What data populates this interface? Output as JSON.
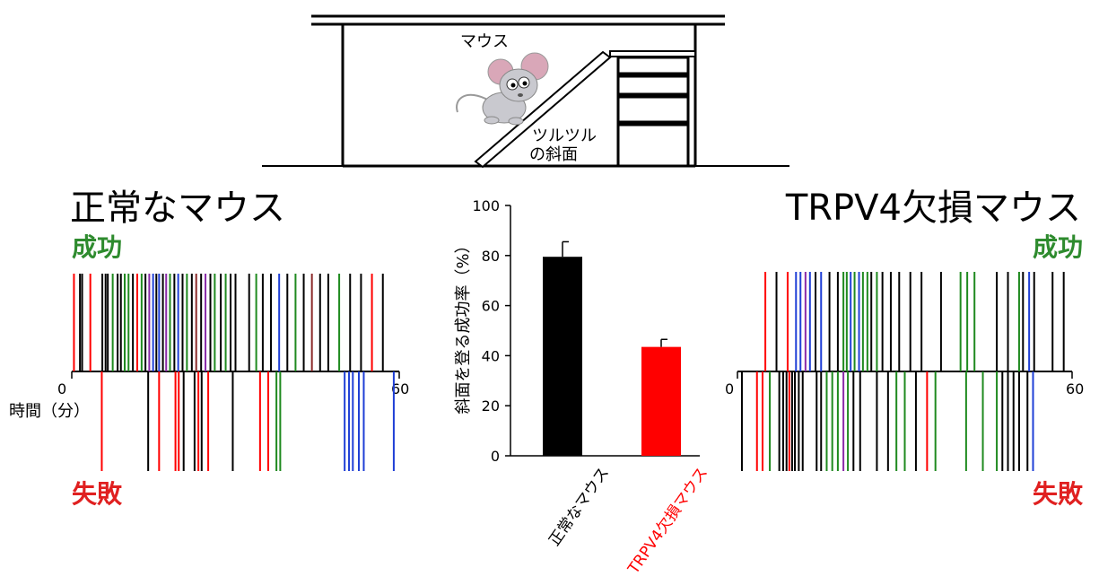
{
  "colors": {
    "success": "#2e8b2e",
    "failure": "#e02020",
    "black": "#000000",
    "red": "#ff0000",
    "blue": "#1f3fd6",
    "green": "#1f8a1f",
    "purple": "#8a2aa8",
    "darkred": "#8b2a2a"
  },
  "apparatus": {
    "mouse_label": "マウス",
    "slope_label_line1": "ツルツル",
    "slope_label_line2": "の斜面"
  },
  "left_panel": {
    "title": "正常なマウス",
    "success_label": "成功",
    "failure_label": "失敗",
    "time_label": "時間（分）",
    "x_start": "0",
    "x_end": "60"
  },
  "right_panel": {
    "title": "TRPV4欠損マウス",
    "success_label": "成功",
    "failure_label": "失敗",
    "x_start": "0",
    "x_end": "60"
  },
  "chart_data": [
    {
      "type": "bar",
      "categories": [
        "正常なマウス",
        "TRPV4欠損マウス"
      ],
      "values": [
        79.5,
        43.5
      ],
      "errors": [
        6,
        3
      ],
      "bar_colors": [
        "#000000",
        "#ff0000"
      ],
      "ylabel": "斜面を登る成功率（%）",
      "ylim": [
        0,
        100
      ],
      "yticks": [
        0,
        20,
        40,
        60,
        80,
        100
      ]
    },
    {
      "type": "event-raster",
      "xlim": [
        0,
        60
      ],
      "success_events": [
        {
          "t": 0.4,
          "c": "red"
        },
        {
          "t": 1.5,
          "c": "black"
        },
        {
          "t": 1.9,
          "c": "black"
        },
        {
          "t": 3.4,
          "c": "red"
        },
        {
          "t": 5.6,
          "c": "black"
        },
        {
          "t": 6.2,
          "c": "black"
        },
        {
          "t": 6.6,
          "c": "black"
        },
        {
          "t": 7.5,
          "c": "green"
        },
        {
          "t": 8.4,
          "c": "black"
        },
        {
          "t": 9.0,
          "c": "black"
        },
        {
          "t": 9.7,
          "c": "green"
        },
        {
          "t": 10.4,
          "c": "green"
        },
        {
          "t": 11.2,
          "c": "black"
        },
        {
          "t": 12.0,
          "c": "red"
        },
        {
          "t": 12.8,
          "c": "green"
        },
        {
          "t": 13.5,
          "c": "black"
        },
        {
          "t": 14.2,
          "c": "purple"
        },
        {
          "t": 14.9,
          "c": "blue"
        },
        {
          "t": 15.5,
          "c": "black"
        },
        {
          "t": 16.0,
          "c": "blue"
        },
        {
          "t": 16.7,
          "c": "black"
        },
        {
          "t": 17.3,
          "c": "purple"
        },
        {
          "t": 18.0,
          "c": "green"
        },
        {
          "t": 18.8,
          "c": "black"
        },
        {
          "t": 19.5,
          "c": "blue"
        },
        {
          "t": 20.3,
          "c": "black"
        },
        {
          "t": 21.1,
          "c": "green"
        },
        {
          "t": 22.0,
          "c": "black"
        },
        {
          "t": 22.8,
          "c": "darkred"
        },
        {
          "t": 23.7,
          "c": "black"
        },
        {
          "t": 24.5,
          "c": "purple"
        },
        {
          "t": 25.4,
          "c": "black"
        },
        {
          "t": 26.2,
          "c": "green"
        },
        {
          "t": 27.3,
          "c": "black"
        },
        {
          "t": 28.2,
          "c": "green"
        },
        {
          "t": 29.1,
          "c": "black"
        },
        {
          "t": 30.0,
          "c": "black"
        },
        {
          "t": 32.5,
          "c": "black"
        },
        {
          "t": 33.8,
          "c": "green"
        },
        {
          "t": 35.0,
          "c": "black"
        },
        {
          "t": 36.5,
          "c": "black"
        },
        {
          "t": 38.0,
          "c": "blue"
        },
        {
          "t": 39.5,
          "c": "black"
        },
        {
          "t": 41.0,
          "c": "green"
        },
        {
          "t": 42.5,
          "c": "black"
        },
        {
          "t": 44.0,
          "c": "darkred"
        },
        {
          "t": 45.5,
          "c": "black"
        },
        {
          "t": 47.0,
          "c": "black"
        },
        {
          "t": 49.0,
          "c": "green"
        },
        {
          "t": 51.0,
          "c": "black"
        },
        {
          "t": 53.0,
          "c": "black"
        },
        {
          "t": 55.0,
          "c": "red"
        },
        {
          "t": 57.0,
          "c": "black"
        }
      ],
      "failure_events": [
        {
          "t": 5.5,
          "c": "red"
        },
        {
          "t": 14.0,
          "c": "black"
        },
        {
          "t": 16.0,
          "c": "red"
        },
        {
          "t": 19.0,
          "c": "red"
        },
        {
          "t": 19.6,
          "c": "red"
        },
        {
          "t": 20.5,
          "c": "black"
        },
        {
          "t": 22.5,
          "c": "black"
        },
        {
          "t": 23.2,
          "c": "red"
        },
        {
          "t": 23.8,
          "c": "black"
        },
        {
          "t": 25.0,
          "c": "red"
        },
        {
          "t": 29.5,
          "c": "black"
        },
        {
          "t": 34.5,
          "c": "red"
        },
        {
          "t": 36.0,
          "c": "red"
        },
        {
          "t": 37.5,
          "c": "green"
        },
        {
          "t": 38.2,
          "c": "green"
        },
        {
          "t": 50.0,
          "c": "blue"
        },
        {
          "t": 50.8,
          "c": "blue"
        },
        {
          "t": 51.5,
          "c": "blue"
        },
        {
          "t": 52.6,
          "c": "blue"
        },
        {
          "t": 53.5,
          "c": "blue"
        },
        {
          "t": 59.0,
          "c": "blue"
        }
      ]
    },
    {
      "type": "event-raster",
      "xlim": [
        0,
        60
      ],
      "success_events": [
        {
          "t": 5.0,
          "c": "red"
        },
        {
          "t": 7.0,
          "c": "black"
        },
        {
          "t": 9.0,
          "c": "red"
        },
        {
          "t": 10.5,
          "c": "blue"
        },
        {
          "t": 11.3,
          "c": "blue"
        },
        {
          "t": 12.2,
          "c": "purple"
        },
        {
          "t": 13.0,
          "c": "blue"
        },
        {
          "t": 14.0,
          "c": "black"
        },
        {
          "t": 15.0,
          "c": "blue"
        },
        {
          "t": 16.5,
          "c": "black"
        },
        {
          "t": 18.0,
          "c": "black"
        },
        {
          "t": 19.0,
          "c": "green"
        },
        {
          "t": 19.6,
          "c": "green"
        },
        {
          "t": 20.3,
          "c": "blue"
        },
        {
          "t": 21.0,
          "c": "green"
        },
        {
          "t": 21.8,
          "c": "blue"
        },
        {
          "t": 22.5,
          "c": "green"
        },
        {
          "t": 23.3,
          "c": "green"
        },
        {
          "t": 24.0,
          "c": "black"
        },
        {
          "t": 25.0,
          "c": "green"
        },
        {
          "t": 26.0,
          "c": "black"
        },
        {
          "t": 27.5,
          "c": "black"
        },
        {
          "t": 29.0,
          "c": "black"
        },
        {
          "t": 31.0,
          "c": "black"
        },
        {
          "t": 33.0,
          "c": "black"
        },
        {
          "t": 36.5,
          "c": "black"
        },
        {
          "t": 40.0,
          "c": "green"
        },
        {
          "t": 41.2,
          "c": "green"
        },
        {
          "t": 42.5,
          "c": "green"
        },
        {
          "t": 46.5,
          "c": "black"
        },
        {
          "t": 48.5,
          "c": "black"
        },
        {
          "t": 50.5,
          "c": "green"
        },
        {
          "t": 51.2,
          "c": "black"
        },
        {
          "t": 52.3,
          "c": "blue"
        },
        {
          "t": 53.2,
          "c": "black"
        },
        {
          "t": 56.5,
          "c": "black"
        },
        {
          "t": 58.5,
          "c": "black"
        }
      ],
      "failure_events": [
        {
          "t": 0.8,
          "c": "black"
        },
        {
          "t": 3.5,
          "c": "red"
        },
        {
          "t": 4.5,
          "c": "red"
        },
        {
          "t": 5.8,
          "c": "green"
        },
        {
          "t": 7.5,
          "c": "black"
        },
        {
          "t": 8.2,
          "c": "black"
        },
        {
          "t": 8.8,
          "c": "black"
        },
        {
          "t": 9.3,
          "c": "red"
        },
        {
          "t": 9.8,
          "c": "black"
        },
        {
          "t": 10.3,
          "c": "black"
        },
        {
          "t": 11.0,
          "c": "black"
        },
        {
          "t": 11.7,
          "c": "black"
        },
        {
          "t": 14.2,
          "c": "black"
        },
        {
          "t": 15.0,
          "c": "black"
        },
        {
          "t": 16.0,
          "c": "green"
        },
        {
          "t": 17.0,
          "c": "green"
        },
        {
          "t": 18.0,
          "c": "green"
        },
        {
          "t": 19.0,
          "c": "purple"
        },
        {
          "t": 19.8,
          "c": "green"
        },
        {
          "t": 20.8,
          "c": "black"
        },
        {
          "t": 22.0,
          "c": "black"
        },
        {
          "t": 25.0,
          "c": "black"
        },
        {
          "t": 27.0,
          "c": "black"
        },
        {
          "t": 28.5,
          "c": "green"
        },
        {
          "t": 30.0,
          "c": "green"
        },
        {
          "t": 32.0,
          "c": "black"
        },
        {
          "t": 34.0,
          "c": "red"
        },
        {
          "t": 35.5,
          "c": "green"
        },
        {
          "t": 41.0,
          "c": "green"
        },
        {
          "t": 44.0,
          "c": "green"
        },
        {
          "t": 46.5,
          "c": "green"
        },
        {
          "t": 47.5,
          "c": "black"
        },
        {
          "t": 48.5,
          "c": "black"
        },
        {
          "t": 49.5,
          "c": "black"
        },
        {
          "t": 50.5,
          "c": "black"
        },
        {
          "t": 52.0,
          "c": "black"
        },
        {
          "t": 53.0,
          "c": "blue"
        }
      ]
    }
  ]
}
